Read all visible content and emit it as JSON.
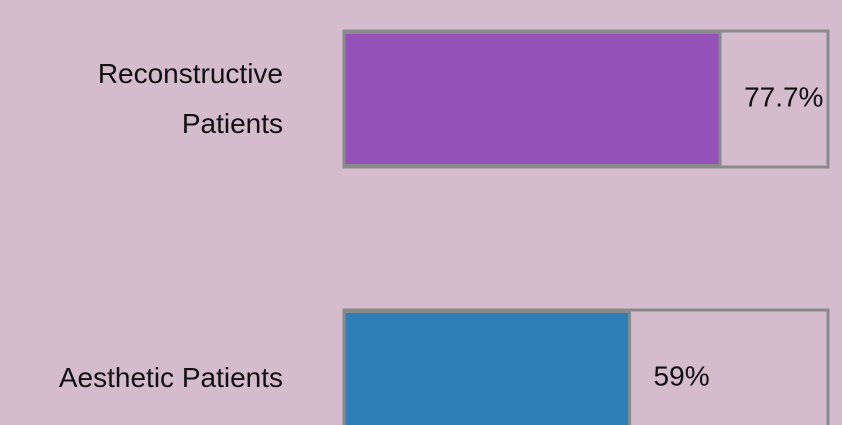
{
  "chart_data": {
    "type": "bar",
    "orientation": "horizontal",
    "categories": [
      "Reconstructive Patients",
      "Aesthetic Patients"
    ],
    "series": [
      {
        "colors": [
          "#9552b8",
          "#2e7fb8"
        ],
        "values": [
          77.7,
          59
        ],
        "value_labels": [
          "77.7%",
          "59%"
        ]
      }
    ],
    "xlim": [
      0,
      100
    ]
  }
}
